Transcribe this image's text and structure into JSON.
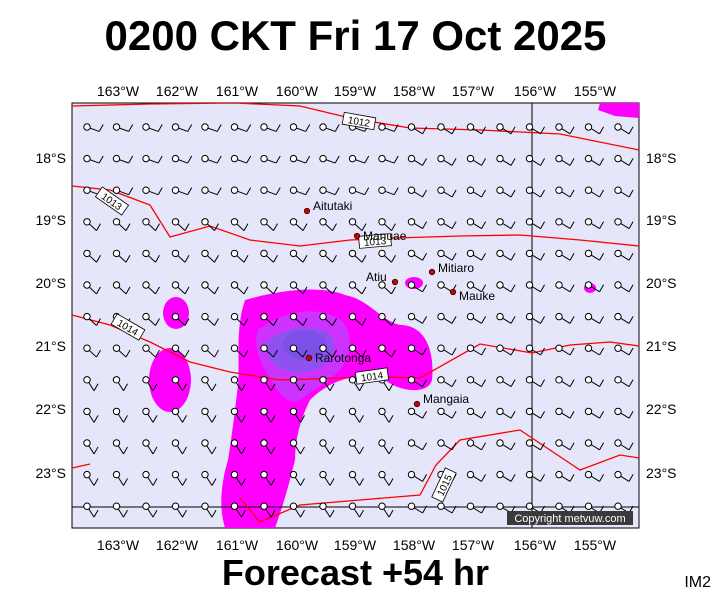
{
  "title": "0200 CKT Fri 17 Oct 2025",
  "footer": "Forecast +54 hr",
  "corner_label": "IM2",
  "copyright": "Copyright metvuw.com",
  "colors": {
    "background": "#e6e6fa",
    "isobar": "#ff0000",
    "rain_light": "#ff00ff",
    "rain_medium": "#cc33ff",
    "rain_heavy": "#7b4fe8",
    "place_dot": "#cc0000"
  },
  "lon_labels": [
    "163°W",
    "162°W",
    "161°W",
    "160°W",
    "159°W",
    "158°W",
    "157°W",
    "156°W",
    "155°W"
  ],
  "lat_labels": [
    "18°S",
    "19°S",
    "20°S",
    "21°S",
    "22°S",
    "23°S"
  ],
  "isobar_labels": [
    "1012",
    "1013",
    "1013",
    "1014",
    "1014",
    "1015"
  ],
  "places": [
    {
      "name": "Aitutaki"
    },
    {
      "name": "Manuae"
    },
    {
      "name": "Mitiaro"
    },
    {
      "name": "Atiu"
    },
    {
      "name": "Mauke"
    },
    {
      "name": "Rarotonga"
    },
    {
      "name": "Mangaia"
    }
  ]
}
